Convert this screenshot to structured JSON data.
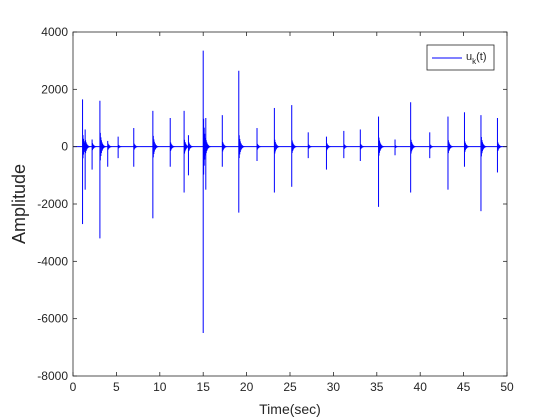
{
  "chart_data": {
    "type": "line",
    "title": "",
    "xlabel": "Time(sec)",
    "ylabel": "Amplitude",
    "xlim": [
      0,
      50
    ],
    "ylim": [
      -8000,
      4000
    ],
    "xticks": [
      0,
      5,
      10,
      15,
      20,
      25,
      30,
      35,
      40,
      45,
      50
    ],
    "yticks": [
      -8000,
      -6000,
      -4000,
      -2000,
      0,
      2000,
      4000
    ],
    "grid": false,
    "legend_position": "top-right",
    "series": [
      {
        "name": "u",
        "name_subscript": "k",
        "name_suffix": "(t)",
        "color": "#0000ff",
        "spikes": [
          {
            "t": 1.1,
            "max": 1650,
            "min": -2700
          },
          {
            "t": 1.4,
            "max": 600,
            "min": -1500
          },
          {
            "t": 2.2,
            "max": 250,
            "min": -800
          },
          {
            "t": 3.1,
            "max": 1600,
            "min": -3200
          },
          {
            "t": 4.0,
            "max": 200,
            "min": -700
          },
          {
            "t": 5.2,
            "max": 350,
            "min": -400
          },
          {
            "t": 7.0,
            "max": 650,
            "min": -700
          },
          {
            "t": 9.2,
            "max": 1250,
            "min": -2500
          },
          {
            "t": 11.2,
            "max": 1000,
            "min": -700
          },
          {
            "t": 12.8,
            "max": 1250,
            "min": -1600
          },
          {
            "t": 13.3,
            "max": 400,
            "min": -1000
          },
          {
            "t": 15.0,
            "max": 3350,
            "min": -6500
          },
          {
            "t": 15.3,
            "max": 1000,
            "min": -1500
          },
          {
            "t": 17.2,
            "max": 1100,
            "min": -700
          },
          {
            "t": 19.1,
            "max": 2650,
            "min": -2300
          },
          {
            "t": 21.2,
            "max": 650,
            "min": -500
          },
          {
            "t": 23.2,
            "max": 1350,
            "min": -1600
          },
          {
            "t": 25.2,
            "max": 1450,
            "min": -1400
          },
          {
            "t": 27.1,
            "max": 500,
            "min": -400
          },
          {
            "t": 29.2,
            "max": 350,
            "min": -800
          },
          {
            "t": 31.2,
            "max": 550,
            "min": -400
          },
          {
            "t": 33.1,
            "max": 600,
            "min": -500
          },
          {
            "t": 35.2,
            "max": 1050,
            "min": -2100
          },
          {
            "t": 37.1,
            "max": 250,
            "min": -300
          },
          {
            "t": 38.9,
            "max": 1550,
            "min": -1600
          },
          {
            "t": 41.1,
            "max": 500,
            "min": -400
          },
          {
            "t": 43.2,
            "max": 1050,
            "min": -1500
          },
          {
            "t": 45.1,
            "max": 1200,
            "min": -700
          },
          {
            "t": 47.0,
            "max": 1100,
            "min": -2250
          },
          {
            "t": 48.9,
            "max": 1000,
            "min": -900
          }
        ]
      }
    ]
  }
}
